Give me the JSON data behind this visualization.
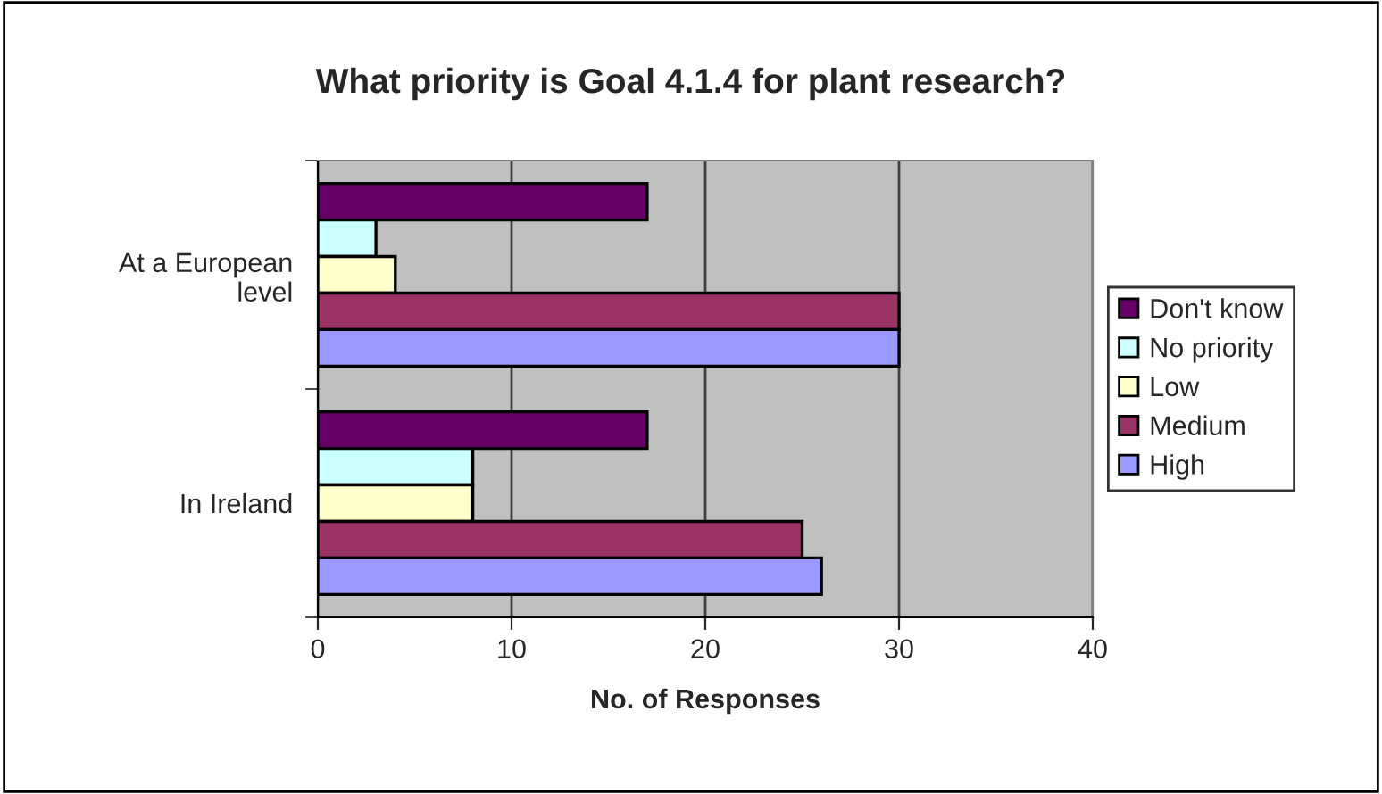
{
  "chart_data": {
    "type": "bar",
    "orientation": "horizontal",
    "title": "What priority is Goal 4.1.4 for plant research?",
    "xlabel": "No. of Responses",
    "categories": [
      "At a European level",
      "In Ireland"
    ],
    "series": [
      {
        "name": "Don't know",
        "color": "#660066",
        "values": [
          17,
          17
        ]
      },
      {
        "name": "No priority",
        "color": "#ccffff",
        "values": [
          3,
          8
        ]
      },
      {
        "name": "Low",
        "color": "#ffffcc",
        "values": [
          4,
          8
        ]
      },
      {
        "name": "Medium",
        "color": "#993366",
        "values": [
          30,
          25
        ]
      },
      {
        "name": "High",
        "color": "#9999ff",
        "values": [
          30,
          26
        ]
      }
    ],
    "xlim": [
      0,
      40
    ],
    "xticks": [
      0,
      10,
      20,
      30,
      40
    ],
    "grid": "x",
    "legend": "right"
  }
}
